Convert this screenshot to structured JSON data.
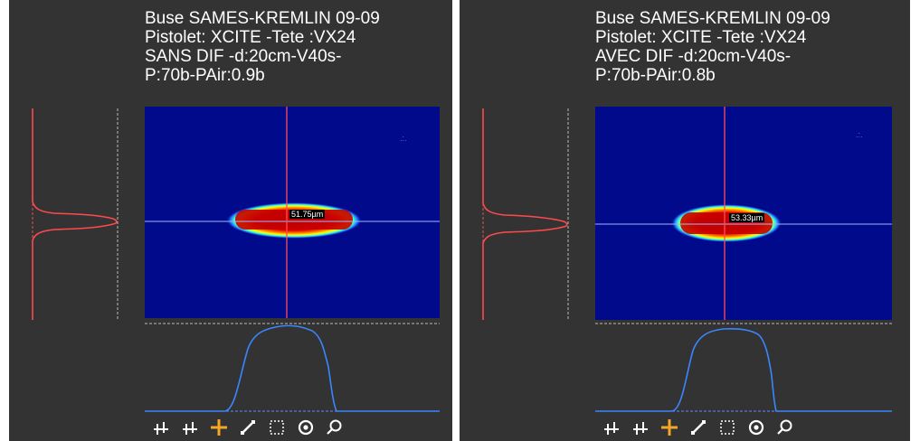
{
  "panels": [
    {
      "title_lines": [
        "Buse SAMES-KREMLIN 09-09",
        "Pistolet: XCITE -Tete :VX24",
        "SANS DIF -d:20cm-V40s-",
        "P:70b-PAir:0.9b"
      ],
      "measurement": "51.75µm"
    },
    {
      "title_lines": [
        "Buse SAMES-KREMLIN 09-09",
        "Pistolet: XCITE -Tete :VX24",
        "AVEC DIF -d:20cm-V40s-",
        "P:70b-PAir:0.8b"
      ],
      "measurement": "53.33µm"
    }
  ],
  "toolbar": {
    "tools": [
      "crosshair-icon",
      "crosshair-alt-icon",
      "plus-cursor-icon",
      "line-measure-icon",
      "rect-select-icon",
      "circle-target-icon",
      "zoom-icon"
    ],
    "active_tool": "plus-cursor-icon"
  },
  "colors": {
    "background": "#333333",
    "heatmap_bg": "#020a8c",
    "cursor_line": "#ff4d5a",
    "profile_vertical": "#ff4a4a",
    "profile_horizontal": "#3a86ff",
    "active_tool": "#f5a623"
  }
}
